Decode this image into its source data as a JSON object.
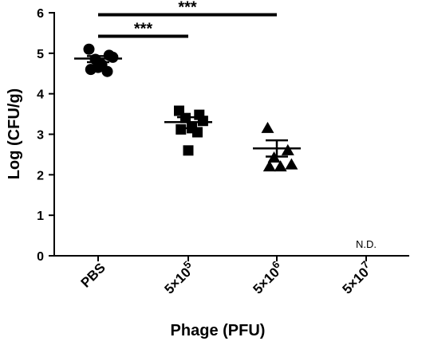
{
  "chart_data": {
    "type": "scatter",
    "title": "",
    "xlabel": "Phage (PFU)",
    "ylabel": "Log (CFU/g)",
    "ylim": [
      0,
      6
    ],
    "yticks": [
      0,
      1,
      2,
      3,
      4,
      5,
      6
    ],
    "grid": false,
    "categories": [
      {
        "base": "PBS",
        "exp": ""
      },
      {
        "base": "5×10",
        "exp": "5"
      },
      {
        "base": "5×10",
        "exp": "6"
      },
      {
        "base": "5×10",
        "exp": "7"
      }
    ],
    "groups": [
      {
        "category_index": 0,
        "marker": "circle",
        "points": [
          5.1,
          4.95,
          4.85,
          4.9,
          4.72,
          4.6,
          4.55,
          4.65
        ],
        "mean": 4.87,
        "sem_low": 4.78,
        "sem_high": 4.93
      },
      {
        "category_index": 1,
        "marker": "square",
        "points": [
          3.58,
          3.48,
          3.4,
          3.33,
          3.15,
          3.12,
          3.05,
          2.6
        ],
        "mean": 3.3,
        "sem_low": 3.15,
        "sem_high": 3.42
      },
      {
        "category_index": 2,
        "marker": "triangle",
        "points": [
          3.15,
          2.6,
          2.42,
          2.25,
          2.2,
          2.2
        ],
        "mean": 2.65,
        "sem_low": 2.45,
        "sem_high": 2.85
      },
      {
        "category_index": 3,
        "marker": "none",
        "points": [],
        "annotation": "N.D."
      }
    ],
    "significance": [
      {
        "from": 0,
        "to": 1,
        "y": 5.42,
        "label": "***"
      },
      {
        "from": 0,
        "to": 2,
        "y": 5.95,
        "label": "***"
      }
    ]
  }
}
